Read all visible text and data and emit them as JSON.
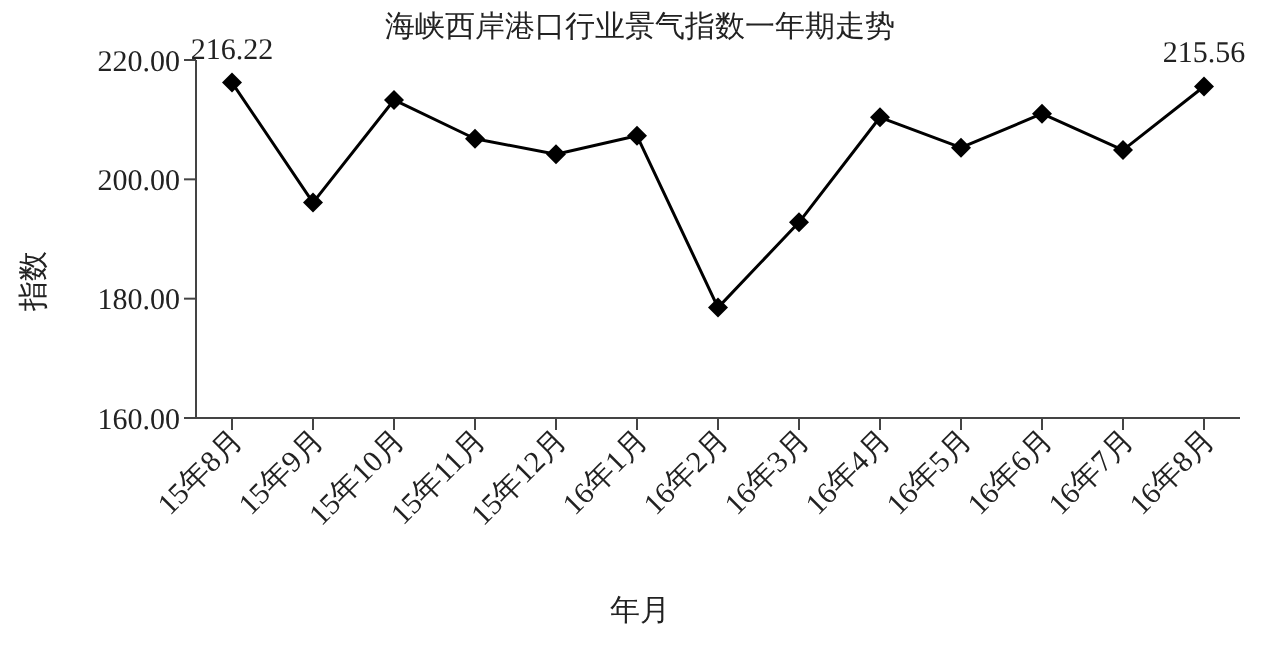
{
  "chart_data": {
    "type": "line",
    "title": "海峡西岸港口行业景气指数一年期走势",
    "xlabel": "年月",
    "ylabel": "指数",
    "categories": [
      "15年8月",
      "15年9月",
      "15年10月",
      "15年11月",
      "15年12月",
      "16年1月",
      "16年2月",
      "16年3月",
      "16年4月",
      "16年5月",
      "16年6月",
      "16年7月",
      "16年8月"
    ],
    "series": [
      {
        "color": "#000000",
        "values": [
          216.22,
          196.1,
          213.3,
          206.8,
          204.2,
          207.3,
          178.5,
          192.8,
          210.4,
          205.3,
          211.0,
          204.9,
          215.56
        ],
        "value_labels": [
          "216.22",
          null,
          null,
          null,
          null,
          null,
          null,
          null,
          null,
          null,
          null,
          null,
          "215.56"
        ]
      }
    ],
    "ylim": [
      160,
      220
    ],
    "yticks": [
      {
        "value": 160,
        "label": "160.00"
      },
      {
        "value": 180,
        "label": "180.00"
      },
      {
        "value": 200,
        "label": "200.00"
      },
      {
        "value": 220,
        "label": "220.00"
      }
    ],
    "grid": false,
    "legend": false,
    "marker": "diamond",
    "line_style": "solid"
  }
}
